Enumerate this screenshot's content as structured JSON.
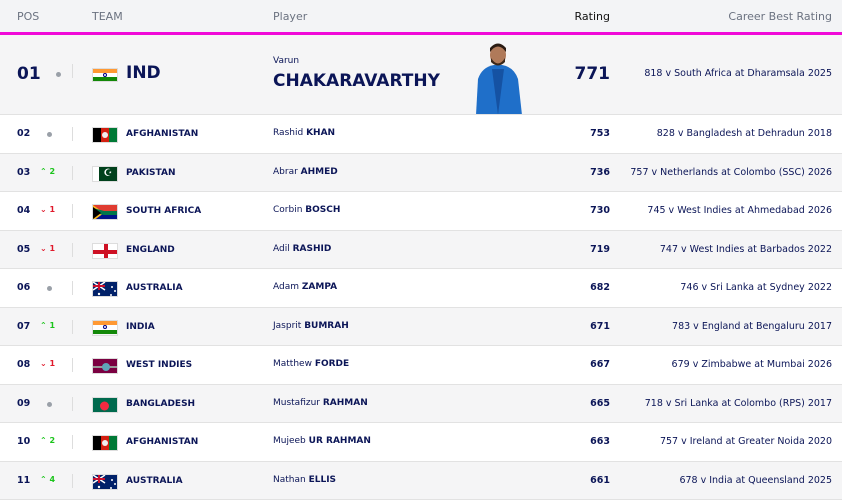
{
  "headers": {
    "pos": "POS",
    "team": "TEAM",
    "player": "Player",
    "rating": "Rating",
    "career_best": "Career Best Rating"
  },
  "accent": "#f00ad8",
  "top": {
    "pos": "01",
    "movement": "none",
    "team": "IND",
    "flag": "india",
    "first": "Varun",
    "last": "CHAKARAVARTHY",
    "rating": "771",
    "best": "818 v South Africa at Dharamsala 2025"
  },
  "rows": [
    {
      "pos": "02",
      "movement": "none",
      "change": "",
      "team": "AFGHANISTAN",
      "flag": "afghanistan",
      "first": "Rashid",
      "last": "KHAN",
      "rating": "753",
      "best": "828 v Bangladesh at Dehradun 2018"
    },
    {
      "pos": "03",
      "movement": "up",
      "change": "2",
      "team": "PAKISTAN",
      "flag": "pakistan",
      "first": "Abrar",
      "last": "AHMED",
      "rating": "736",
      "best": "757 v Netherlands at Colombo (SSC) 2026"
    },
    {
      "pos": "04",
      "movement": "down",
      "change": "1",
      "team": "SOUTH AFRICA",
      "flag": "south-africa",
      "first": "Corbin",
      "last": "BOSCH",
      "rating": "730",
      "best": "745 v West Indies at Ahmedabad 2026"
    },
    {
      "pos": "05",
      "movement": "down",
      "change": "1",
      "team": "ENGLAND",
      "flag": "england",
      "first": "Adil",
      "last": "RASHID",
      "rating": "719",
      "best": "747 v West Indies at Barbados 2022"
    },
    {
      "pos": "06",
      "movement": "none",
      "change": "",
      "team": "AUSTRALIA",
      "flag": "australia",
      "first": "Adam",
      "last": "ZAMPA",
      "rating": "682",
      "best": "746 v Sri Lanka at Sydney 2022"
    },
    {
      "pos": "07",
      "movement": "up",
      "change": "1",
      "team": "INDIA",
      "flag": "india",
      "first": "Jasprit",
      "last": "BUMRAH",
      "rating": "671",
      "best": "783 v England at Bengaluru 2017"
    },
    {
      "pos": "08",
      "movement": "down",
      "change": "1",
      "team": "WEST INDIES",
      "flag": "west-indies",
      "first": "Matthew",
      "last": "FORDE",
      "rating": "667",
      "best": "679 v Zimbabwe at Mumbai 2026"
    },
    {
      "pos": "09",
      "movement": "none",
      "change": "",
      "team": "BANGLADESH",
      "flag": "bangladesh",
      "first": "Mustafizur",
      "last": "RAHMAN",
      "rating": "665",
      "best": "718 v Sri Lanka at Colombo (RPS) 2017"
    },
    {
      "pos": "10",
      "movement": "up",
      "change": "2",
      "team": "AFGHANISTAN",
      "flag": "afghanistan",
      "first": "Mujeeb",
      "last": "UR RAHMAN",
      "rating": "663",
      "best": "757 v Ireland at Greater Noida 2020"
    },
    {
      "pos": "11",
      "movement": "up",
      "change": "4",
      "team": "AUSTRALIA",
      "flag": "australia",
      "first": "Nathan",
      "last": "ELLIS",
      "rating": "661",
      "best": "678 v India at Queensland 2025"
    }
  ]
}
